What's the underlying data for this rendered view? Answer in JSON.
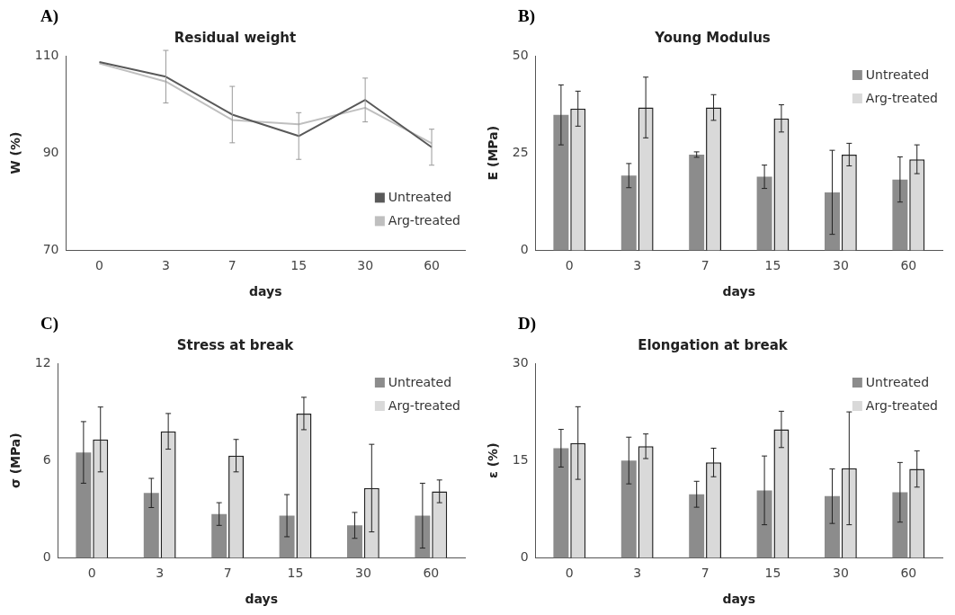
{
  "chart_data": [
    {
      "type": "line",
      "title": "Residual weight",
      "xlabel": "days",
      "ylabel": "W (%)",
      "annotations": [
        "A)"
      ],
      "categories": [
        "0",
        "3",
        "7",
        "15",
        "30",
        "60"
      ],
      "ylim": [
        70,
        110
      ],
      "yticks": [
        70,
        90,
        110
      ],
      "grid": false,
      "legend": "bottom right",
      "marker": "none",
      "line_style": "solid",
      "series": [
        {
          "name": "Untreated",
          "color": "#595959",
          "values": [
            108.7,
            105.7,
            97.9,
            93.5,
            100.9,
            91.2
          ],
          "errors": [
            null,
            5.4,
            5.8,
            4.8,
            4.5,
            3.7
          ]
        },
        {
          "name": "Arg-treated",
          "color": "#bfbfbf",
          "values": [
            108.4,
            104.7,
            96.8,
            95.9,
            99.3,
            92
          ]
        }
      ]
    },
    {
      "type": "bar",
      "title": "Young Modulus",
      "xlabel": "days",
      "ylabel": "E (MPa)",
      "annotations": [
        "B)"
      ],
      "categories": [
        "0",
        "3",
        "7",
        "15",
        "30",
        "60"
      ],
      "ylim": [
        0,
        50
      ],
      "yticks": [
        0,
        25,
        50
      ],
      "grid": false,
      "legend": "top right",
      "series": [
        {
          "name": "Untreated",
          "color": "#8c8c8c",
          "values": [
            34.8,
            19.2,
            24.6,
            18.9,
            14.9,
            18.2
          ],
          "errors": [
            7.7,
            3.1,
            0.7,
            3,
            10.8,
            5.8
          ]
        },
        {
          "name": "Arg-treated",
          "color": "#d9d9d9",
          "values": [
            36.4,
            36.7,
            36.7,
            33.9,
            24.6,
            23.4
          ],
          "errors": [
            4.5,
            7.8,
            3.3,
            3.5,
            2.9,
            3.7
          ]
        }
      ]
    },
    {
      "type": "bar",
      "title": "Stress at break",
      "xlabel": "days",
      "ylabel": "σ (MPa)",
      "annotations": [
        "C)"
      ],
      "categories": [
        "0",
        "3",
        "7",
        "15",
        "30",
        "60"
      ],
      "ylim": [
        0,
        12
      ],
      "yticks": [
        0,
        6,
        12
      ],
      "grid": false,
      "legend": "top right",
      "series": [
        {
          "name": "Untreated",
          "color": "#8c8c8c",
          "values": [
            6.5,
            4,
            2.7,
            2.6,
            2,
            2.6
          ],
          "errors": [
            1.9,
            0.9,
            0.7,
            1.3,
            0.8,
            2
          ]
        },
        {
          "name": "Arg-treated",
          "color": "#d9d9d9",
          "values": [
            7.3,
            7.8,
            6.3,
            8.9,
            4.3,
            4.1
          ],
          "errors": [
            2,
            1.1,
            1,
            1,
            2.7,
            0.7
          ]
        }
      ]
    },
    {
      "type": "bar",
      "title": "Elongation at break",
      "xlabel": "days",
      "ylabel": "ε (%)",
      "annotations": [
        "D)"
      ],
      "categories": [
        "0",
        "3",
        "7",
        "15",
        "30",
        "60"
      ],
      "ylim": [
        0,
        30
      ],
      "yticks": [
        0,
        15,
        30
      ],
      "grid": false,
      "legend": "top right",
      "series": [
        {
          "name": "Untreated",
          "color": "#8c8c8c",
          "values": [
            16.9,
            15,
            9.8,
            10.4,
            9.5,
            10.1
          ],
          "errors": [
            2.9,
            3.6,
            2,
            5.3,
            4.2,
            4.6
          ]
        },
        {
          "name": "Arg-treated",
          "color": "#d9d9d9",
          "values": [
            17.7,
            17.2,
            14.7,
            19.8,
            13.8,
            13.7
          ],
          "errors": [
            5.6,
            1.9,
            2.2,
            2.8,
            8.7,
            2.8
          ]
        }
      ]
    }
  ]
}
